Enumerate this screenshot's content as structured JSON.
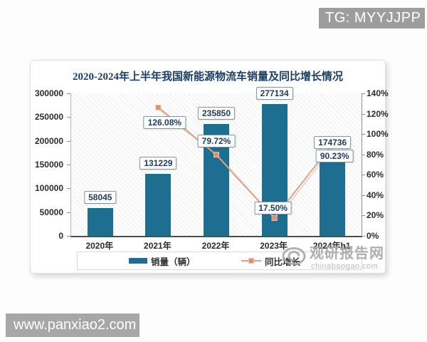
{
  "overlays": {
    "tg_badge": "TG: MYYJJPP",
    "site_badge": "www.panxiao2.com"
  },
  "watermark": {
    "brand": "观研报告网",
    "domain": "chinabaogao.com"
  },
  "chart_data": {
    "type": "bar+line",
    "title": "2020-2024年上半年我国新能源物流车销量及同比增长情况",
    "categories": [
      "2020年",
      "2021年",
      "2022年",
      "2023年",
      "2024年h1"
    ],
    "series": [
      {
        "name": "销量（辆）",
        "type": "bar",
        "axis": "left",
        "color": "#1d6e90",
        "values": [
          58045,
          131229,
          235850,
          277134,
          174736
        ],
        "labels": [
          "58045",
          "131229",
          "235850",
          "277134",
          "174736"
        ]
      },
      {
        "name": "同比增长",
        "type": "line",
        "axis": "right",
        "color": "#e0a184",
        "marker_color": "#dd8f72",
        "values": [
          null,
          126.08,
          79.72,
          17.5,
          90.23
        ],
        "labels": [
          null,
          "126.08%",
          "79.72%",
          "17.50%",
          "90.23%"
        ],
        "label_offsets": [
          null,
          [
            9,
            21.5
          ],
          [
            0,
            -19
          ],
          [
            -2,
            -14
          ],
          [
            3,
            16.5
          ]
        ]
      }
    ],
    "left_axis": {
      "min": 0,
      "max": 300000,
      "tick_step": 50000,
      "tick_labels": [
        "300000",
        "250000",
        "200000",
        "150000",
        "100000",
        "50000",
        "0"
      ]
    },
    "right_axis": {
      "min": 0,
      "max": 140,
      "tick_step": 20,
      "tick_labels": [
        "140%",
        "120%",
        "100%",
        "80%",
        "60%",
        "40%",
        "20%",
        "0%"
      ]
    },
    "legend": [
      {
        "label": "销量（辆）",
        "swatch": "bar"
      },
      {
        "label": "同比增长",
        "swatch": "line"
      }
    ],
    "grid": false,
    "plot_background": "hatched",
    "legend_position": "bottom"
  }
}
